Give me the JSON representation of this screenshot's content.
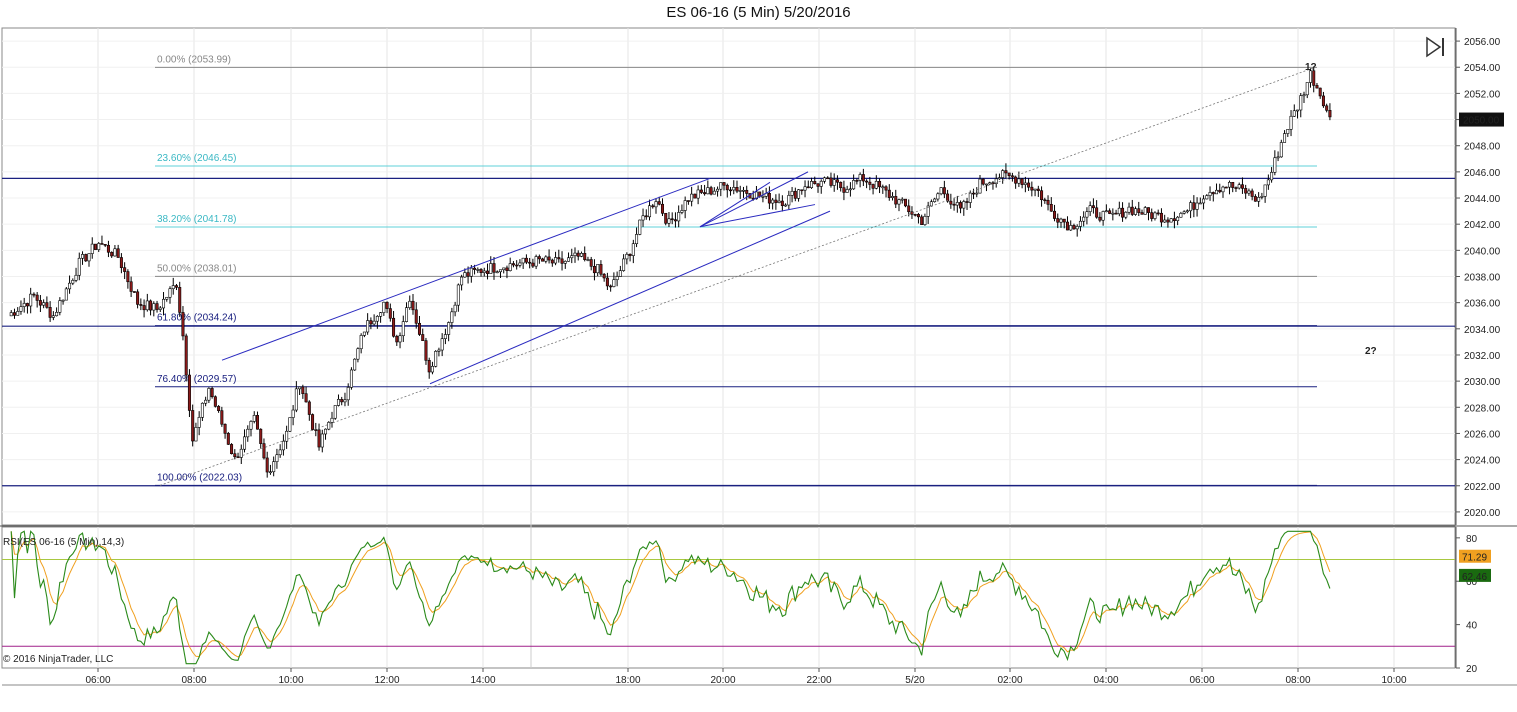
{
  "title": "ES 06-16 (5 Min)  5/20/2016",
  "copyright": "© 2016 NinjaTrader, LLC",
  "rsi_label": "RSI(ES 06-16 (5 Min),14,3)",
  "icons": {
    "play_end": "skip-to-end-icon"
  },
  "colors": {
    "up_candle": "#ffffff",
    "down_candle": "#8b1a1a",
    "wick": "#000000",
    "hline": "#1a2080",
    "channel": "#2a2ac0",
    "fib_upper": "#5fd0d8",
    "rsi_line": "#2a8a1a",
    "rsi_avg": "#f0a020",
    "rsi_upper": "#a8c840",
    "rsi_lower": "#a0208a"
  },
  "annotations": {
    "wave1": "1?",
    "wave2": "2?"
  },
  "chart_data": [
    {
      "type": "candlestick",
      "title": "ES 06-16 (5 Min)  5/20/2016",
      "ylim": [
        2019,
        2057
      ],
      "y_ticks": [
        "2056.00",
        "2054.00",
        "2052.00",
        "2050.00",
        "2048.00",
        "2046.00",
        "2044.00",
        "2042.00",
        "2040.00",
        "2038.00",
        "2036.00",
        "2034.00",
        "2032.00",
        "2030.00",
        "2028.00",
        "2026.00",
        "2024.00",
        "2022.00",
        "2020.00"
      ],
      "x_ticks": [
        "06:00",
        "08:00",
        "10:00",
        "12:00",
        "14:00",
        "18:00",
        "20:00",
        "22:00",
        "5/20",
        "02:00",
        "04:00",
        "06:00",
        "08:00",
        "10:00"
      ],
      "last_price_label": "2050.00",
      "last_price": 2050.0,
      "fib_levels": [
        {
          "label": "0.00% (2053.99)",
          "value": 2053.99
        },
        {
          "label": "23.60% (2046.45)",
          "value": 2046.45
        },
        {
          "label": "38.20% (2041.78)",
          "value": 2041.78
        },
        {
          "label": "50.00% (2038.01)",
          "value": 2038.01
        },
        {
          "label": "61.80% (2034.24)",
          "value": 2034.24
        },
        {
          "label": "76.40% (2029.57)",
          "value": 2029.57
        },
        {
          "label": "100.00% (2022.03)",
          "value": 2022.03
        }
      ],
      "horizontal_lines": [
        2045.5,
        2034.2,
        2022.0
      ],
      "price_path": [
        [
          0,
          2035
        ],
        [
          8,
          2036.5
        ],
        [
          14,
          2035
        ],
        [
          22,
          2039
        ],
        [
          28,
          2040.6
        ],
        [
          34,
          2039.5
        ],
        [
          40,
          2036
        ],
        [
          46,
          2035.5
        ],
        [
          52,
          2037.5
        ],
        [
          54,
          2033.5
        ],
        [
          57,
          2025.5
        ],
        [
          62,
          2029.5
        ],
        [
          70,
          2024
        ],
        [
          76,
          2027
        ],
        [
          80,
          2023
        ],
        [
          86,
          2026
        ],
        [
          90,
          2030
        ],
        [
          96,
          2025
        ],
        [
          100,
          2027.5
        ],
        [
          104,
          2029
        ],
        [
          110,
          2034
        ],
        [
          116,
          2036
        ],
        [
          120,
          2033
        ],
        [
          124,
          2036.5
        ],
        [
          130,
          2031
        ],
        [
          136,
          2034.5
        ],
        [
          140,
          2038
        ],
        [
          146,
          2038.5
        ],
        [
          152,
          2038.8
        ],
        [
          158,
          2039
        ],
        [
          164,
          2039.2
        ],
        [
          170,
          2039
        ],
        [
          176,
          2039.5
        ],
        [
          182,
          2038.5
        ],
        [
          186,
          2037
        ],
        [
          192,
          2040
        ],
        [
          196,
          2042.5
        ],
        [
          200,
          2044
        ],
        [
          204,
          2042
        ],
        [
          210,
          2044
        ],
        [
          216,
          2044.5
        ],
        [
          222,
          2045
        ],
        [
          228,
          2044.5
        ],
        [
          234,
          2044
        ],
        [
          240,
          2043.8
        ],
        [
          246,
          2045
        ],
        [
          252,
          2045.2
        ],
        [
          258,
          2044.8
        ],
        [
          264,
          2045.5
        ],
        [
          270,
          2044.6
        ],
        [
          276,
          2043.5
        ],
        [
          282,
          2042.3
        ],
        [
          288,
          2044.7
        ],
        [
          294,
          2043
        ],
        [
          300,
          2045.1
        ],
        [
          306,
          2045.7
        ],
        [
          312,
          2045.5
        ],
        [
          318,
          2044.5
        ],
        [
          322,
          2043
        ],
        [
          328,
          2041.8
        ],
        [
          334,
          2043
        ],
        [
          340,
          2042.5
        ],
        [
          346,
          2043.2
        ],
        [
          352,
          2042.8
        ],
        [
          358,
          2042.5
        ],
        [
          364,
          2043
        ],
        [
          370,
          2044.5
        ],
        [
          376,
          2045
        ],
        [
          382,
          2044.5
        ],
        [
          386,
          2043.8
        ],
        [
          390,
          2046
        ],
        [
          394,
          2049
        ],
        [
          398,
          2051
        ],
        [
          402,
          2053.5
        ],
        [
          406,
          2051.5
        ],
        [
          408,
          2050
        ]
      ],
      "rsi": {
        "ylim": [
          20,
          85
        ],
        "y_ticks": [
          "80",
          "60",
          "40",
          "20"
        ],
        "upper_band": 70,
        "lower_band": 30,
        "rsi_label": "71.29",
        "rsi_value": 71.29,
        "avg_label": "62.46",
        "avg_value": 62.46
      }
    }
  ]
}
